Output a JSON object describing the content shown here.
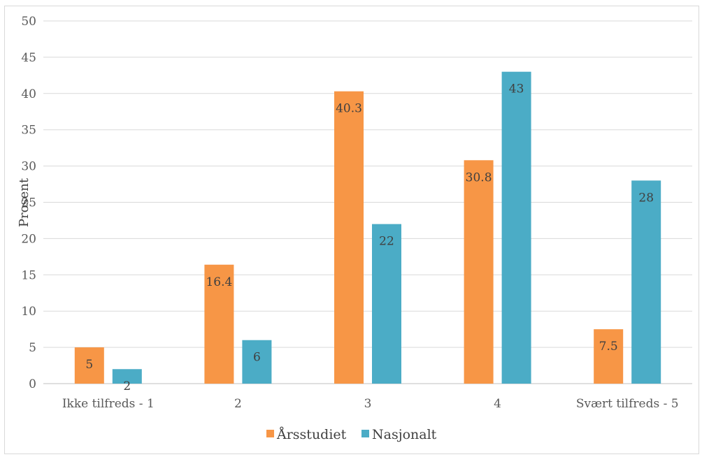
{
  "chart_data": {
    "type": "bar",
    "title": "",
    "xlabel": "",
    "ylabel": "Prosent",
    "ylim": [
      0,
      50
    ],
    "ytick_step": 5,
    "grid": true,
    "legend_position": "bottom",
    "categories": [
      "Ikke tilfreds - 1",
      "2",
      "3",
      "4",
      "Svært tilfreds - 5"
    ],
    "series": [
      {
        "name": "Årsstudiet",
        "color": "#f79646",
        "values": [
          5,
          16.4,
          40.3,
          30.8,
          7.5
        ]
      },
      {
        "name": "Nasjonalt",
        "color": "#4bacc6",
        "values": [
          2,
          6,
          22,
          43,
          28
        ]
      }
    ]
  }
}
